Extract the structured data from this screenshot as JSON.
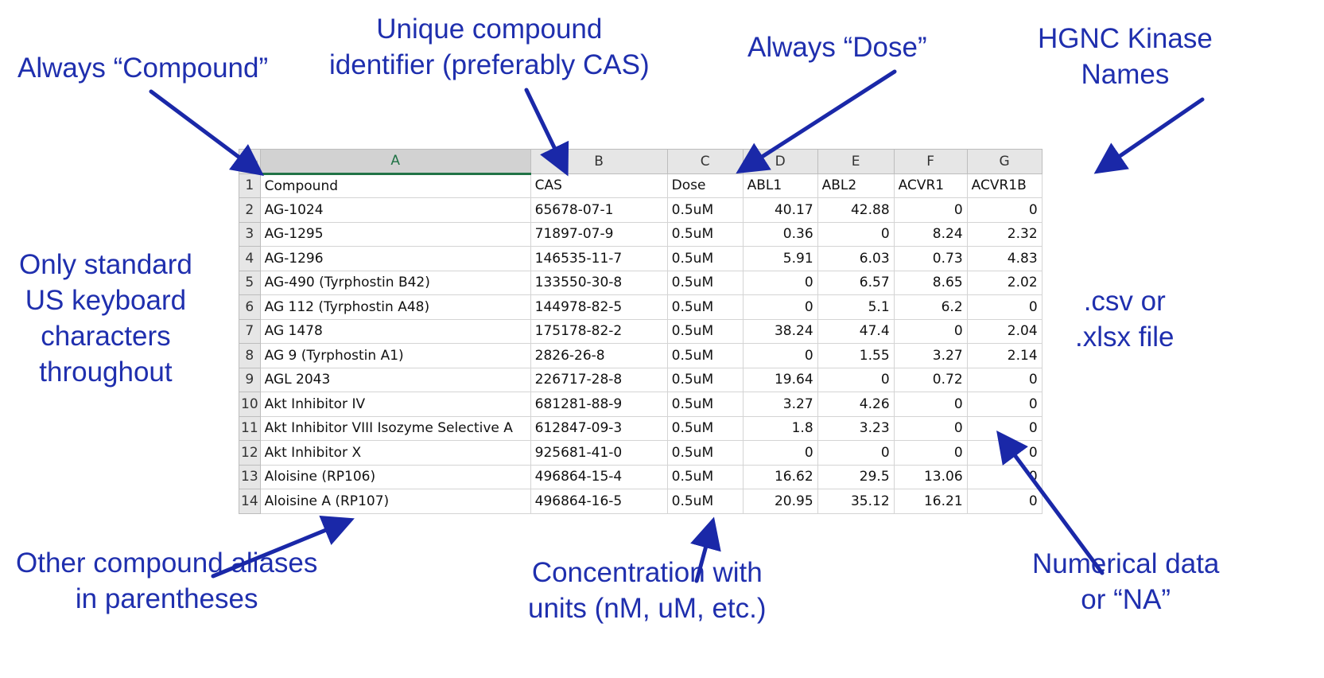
{
  "annotations": {
    "compound_header": "Always “Compound”",
    "cas_line1": "Unique compound",
    "cas_line2": "identifier (preferably CAS)",
    "dose_header": "Always “Dose”",
    "hgnc_line1": "HGNC Kinase",
    "hgnc_line2": "Names",
    "keyboard_line1": "Only standard",
    "keyboard_line2": "US keyboard",
    "keyboard_line3": "characters",
    "keyboard_line4": "throughout",
    "filetype_line1": ".csv or",
    "filetype_line2": ".xlsx file",
    "aliases_line1": "Other compound aliases",
    "aliases_line2": "in parentheses",
    "concentration_line1": "Concentration with",
    "concentration_line2": "units (nM, uM, etc.)",
    "numerical_line1": "Numerical data",
    "numerical_line2": "or “NA”"
  },
  "spreadsheet": {
    "column_letters": [
      "A",
      "B",
      "C",
      "D",
      "E",
      "F",
      "G"
    ],
    "selected_column": "A",
    "rows": [
      {
        "n": "1",
        "a": "Compound",
        "b": "CAS",
        "c": "Dose",
        "d": "ABL1",
        "e": "ABL2",
        "f": "ACVR1",
        "g": "ACVR1B"
      },
      {
        "n": "2",
        "a": "AG-1024",
        "b": "65678-07-1",
        "c": "0.5uM",
        "d": "40.17",
        "e": "42.88",
        "f": "0",
        "g": "0"
      },
      {
        "n": "3",
        "a": "AG-1295",
        "b": "71897-07-9",
        "c": "0.5uM",
        "d": "0.36",
        "e": "0",
        "f": "8.24",
        "g": "2.32"
      },
      {
        "n": "4",
        "a": "AG-1296",
        "b": "146535-11-7",
        "c": "0.5uM",
        "d": "5.91",
        "e": "6.03",
        "f": "0.73",
        "g": "4.83"
      },
      {
        "n": "5",
        "a": "AG-490 (Tyrphostin B42)",
        "b": "133550-30-8",
        "c": "0.5uM",
        "d": "0",
        "e": "6.57",
        "f": "8.65",
        "g": "2.02"
      },
      {
        "n": "6",
        "a": "AG 112 (Tyrphostin A48)",
        "b": "144978-82-5",
        "c": "0.5uM",
        "d": "0",
        "e": "5.1",
        "f": "6.2",
        "g": "0"
      },
      {
        "n": "7",
        "a": "AG 1478",
        "b": "175178-82-2",
        "c": "0.5uM",
        "d": "38.24",
        "e": "47.4",
        "f": "0",
        "g": "2.04"
      },
      {
        "n": "8",
        "a": "AG 9 (Tyrphostin A1)",
        "b": "2826-26-8",
        "c": "0.5uM",
        "d": "0",
        "e": "1.55",
        "f": "3.27",
        "g": "2.14"
      },
      {
        "n": "9",
        "a": "AGL 2043",
        "b": "226717-28-8",
        "c": "0.5uM",
        "d": "19.64",
        "e": "0",
        "f": "0.72",
        "g": "0"
      },
      {
        "n": "10",
        "a": "Akt Inhibitor IV",
        "b": "681281-88-9",
        "c": "0.5uM",
        "d": "3.27",
        "e": "4.26",
        "f": "0",
        "g": "0"
      },
      {
        "n": "11",
        "a": "Akt Inhibitor VIII Isozyme Selective A",
        "b": "612847-09-3",
        "c": "0.5uM",
        "d": "1.8",
        "e": "3.23",
        "f": "0",
        "g": "0"
      },
      {
        "n": "12",
        "a": "Akt Inhibitor X",
        "b": "925681-41-0",
        "c": "0.5uM",
        "d": "0",
        "e": "0",
        "f": "0",
        "g": "0"
      },
      {
        "n": "13",
        "a": "Aloisine (RP106)",
        "b": "496864-15-4",
        "c": "0.5uM",
        "d": "16.62",
        "e": "29.5",
        "f": "13.06",
        "g": "0"
      },
      {
        "n": "14",
        "a": "Aloisine A (RP107)",
        "b": "496864-16-5",
        "c": "0.5uM",
        "d": "20.95",
        "e": "35.12",
        "f": "16.21",
        "g": "0"
      }
    ]
  },
  "colors": {
    "annotation_text": "#1f2fae",
    "arrow": "#1a28a8",
    "selected_column_accent": "#217346"
  }
}
